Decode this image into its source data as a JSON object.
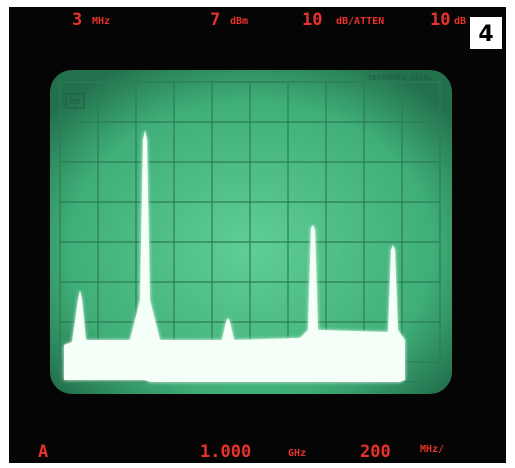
{
  "top_readouts": [
    {
      "value": "3",
      "unit": "MHz"
    },
    {
      "value": "7",
      "unit": "dBm"
    },
    {
      "value": "10",
      "unit": "dB/ATTEN"
    },
    {
      "value": "10",
      "unit": "dB"
    }
  ],
  "badge": "4",
  "screen": {
    "brand": "hp",
    "label": "REFERENCE LEVEL"
  },
  "bottom_readouts": [
    {
      "value": "A",
      "unit": null
    },
    {
      "value": "1.000",
      "unit": "GHz"
    },
    {
      "value": "200",
      "unit": "MHz/"
    }
  ]
}
